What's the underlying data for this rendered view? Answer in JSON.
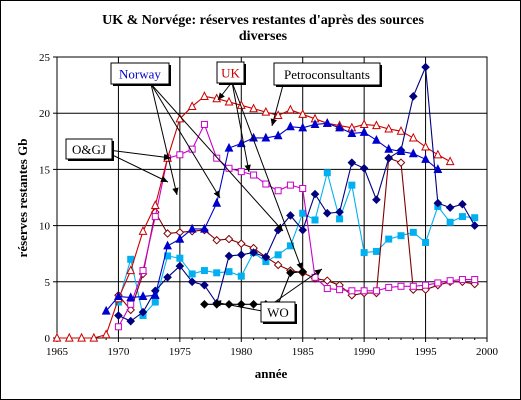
{
  "chart_data": {
    "type": "line",
    "title": [
      "UK & Norvége: réserves restantes d'après des sources",
      "diverses"
    ],
    "xlabel": "année",
    "ylabel": "réserves restantes Gb",
    "xlim": [
      1965,
      2000
    ],
    "ylim": [
      0,
      25
    ],
    "xticks": [
      1965,
      1970,
      1975,
      1980,
      1985,
      1990,
      1995,
      2000
    ],
    "yticks": [
      0,
      5,
      10,
      15,
      20,
      25
    ],
    "grid": "horizontal and vertical major gridlines",
    "legend": "callout labels",
    "colors": {
      "uk": "#cc0000",
      "norway_triangle": "#0000cc",
      "norway_diamond": "#000080",
      "og_j": "#cc00cc",
      "wo": "#800000",
      "petroconsultants_cyan": "#00b0f0",
      "petroconsultants_black": "#000000"
    },
    "series": [
      {
        "key": "uk",
        "marker": "open-triangle",
        "x": [
          1965,
          1966,
          1967,
          1968,
          1969,
          1970,
          1971,
          1972,
          1973,
          1974,
          1975,
          1976,
          1977,
          1978,
          1979,
          1980,
          1981,
          1982,
          1983,
          1984,
          1985,
          1986,
          1987,
          1988,
          1989,
          1990,
          1991,
          1992,
          1993,
          1994,
          1995,
          1996,
          1997
        ],
        "values": [
          0,
          0,
          0,
          0,
          0.3,
          3.5,
          6,
          9.5,
          11.8,
          16,
          19.5,
          20.6,
          21.5,
          21.3,
          21,
          20.7,
          20.4,
          20.1,
          19.8,
          20.3,
          19.9,
          19.5,
          19.1,
          18.9,
          18.7,
          19,
          18.9,
          18.6,
          18.4,
          17.8,
          17,
          16.3,
          15.7
        ]
      },
      {
        "key": "norway_triangle",
        "marker": "filled-triangle",
        "x": [
          1969,
          1970,
          1971,
          1972,
          1973,
          1974,
          1975,
          1976,
          1977,
          1978,
          1979,
          1980,
          1981,
          1982,
          1983,
          1984,
          1985,
          1986,
          1987,
          1988,
          1989,
          1990,
          1991,
          1992,
          1993,
          1994,
          1995,
          1996
        ],
        "values": [
          2.4,
          3.7,
          3.6,
          3.7,
          3.8,
          8.2,
          8.8,
          9.7,
          9.7,
          12,
          16.9,
          17.3,
          17.8,
          17.8,
          18,
          18.8,
          18.7,
          19,
          19.1,
          18.7,
          18.2,
          18.3,
          17.6,
          16.8,
          16.6,
          16.4,
          15.9,
          15
        ]
      },
      {
        "key": "norway_diamond",
        "marker": "filled-diamond",
        "x": [
          1970,
          1971,
          1972,
          1973,
          1974,
          1975,
          1976,
          1977,
          1978,
          1979,
          1980,
          1981,
          1982,
          1983,
          1984,
          1985,
          1986,
          1987,
          1988,
          1989,
          1990,
          1991,
          1992,
          1993,
          1994,
          1995,
          1996,
          1997,
          1998,
          1999
        ],
        "values": [
          2,
          1.5,
          2.3,
          4.2,
          5.4,
          6.4,
          5,
          4.7,
          3.1,
          7.3,
          7.4,
          7.6,
          7.2,
          9.6,
          10.9,
          9.6,
          12.8,
          11.1,
          11.2,
          15.6,
          15.1,
          12.3,
          16,
          16.7,
          21.5,
          24.1,
          12,
          11.6,
          11.9,
          10
        ]
      },
      {
        "key": "og_j",
        "marker": "open-square",
        "x": [
          1970,
          1971,
          1972,
          1973,
          1974,
          1975,
          1976,
          1977,
          1978,
          1979,
          1980,
          1981,
          1982,
          1983,
          1984,
          1985,
          1986,
          1987,
          1988,
          1989,
          1990,
          1991,
          1992,
          1993,
          1994,
          1995,
          1996,
          1997,
          1998,
          1999
        ],
        "values": [
          1,
          3,
          6,
          10.8,
          16,
          16.3,
          16.8,
          19,
          16,
          15.1,
          14.8,
          14.5,
          13.7,
          13.1,
          13.6,
          13.3,
          5.4,
          4.4,
          4.3,
          4.2,
          4.2,
          4.2,
          4.5,
          4.6,
          4.6,
          4.7,
          4.9,
          5.1,
          5.2,
          5.2
        ]
      },
      {
        "key": "wo",
        "marker": "open-diamond",
        "x": [
          1970,
          1971,
          1972,
          1973,
          1974,
          1975,
          1976,
          1977,
          1978,
          1979,
          1980,
          1981,
          1982,
          1983,
          1984,
          1985,
          1986,
          1987,
          1988,
          1989,
          1990,
          1991,
          1992,
          1993,
          1994,
          1995,
          1996,
          1997,
          1998,
          1999
        ],
        "values": [
          3.8,
          2.5,
          5.7,
          11.2,
          9.3,
          9.4,
          9.5,
          9.6,
          8.7,
          8.8,
          8.4,
          8,
          7.2,
          6.5,
          6,
          5.8,
          5.3,
          5.1,
          4.7,
          3.8,
          4,
          4,
          16,
          15.6,
          4.3,
          4.3,
          4.7,
          5,
          5,
          4.8
        ]
      },
      {
        "key": "petroconsultants_cyan",
        "marker": "filled-square",
        "x": [
          1970,
          1971,
          1972,
          1973,
          1974,
          1975,
          1976,
          1977,
          1978,
          1979,
          1980,
          1981,
          1982,
          1983,
          1984,
          1985,
          1986,
          1987,
          1988,
          1989,
          1990,
          1991,
          1992,
          1993,
          1994,
          1995,
          1996,
          1997,
          1998,
          1999
        ],
        "values": [
          3.2,
          7,
          2,
          3.2,
          7.3,
          7.1,
          5.7,
          6,
          5.8,
          5.9,
          5.5,
          7.6,
          6.8,
          7.4,
          8.2,
          11.1,
          10.5,
          14.7,
          10.6,
          13.6,
          7.6,
          7.7,
          8.8,
          9.1,
          9.4,
          8.5,
          11.7,
          10.3,
          10.8,
          10.7
        ]
      },
      {
        "key": "petroconsultants_black",
        "marker": "filled-diamond",
        "x": [
          1977,
          1978,
          1979,
          1980,
          1981,
          1982,
          1983,
          1984,
          1985,
          1986,
          1987,
          1988,
          1989,
          1990,
          1991,
          1992,
          1993,
          1994,
          1995,
          1996,
          1997,
          1998,
          1999
        ],
        "values": [
          3,
          3,
          3,
          3,
          3,
          3,
          3,
          5.8,
          5.9,
          null,
          null,
          null,
          null,
          null,
          null,
          null,
          null,
          null,
          null,
          null,
          null,
          null,
          null
        ]
      }
    ],
    "labels": {
      "norway": "Norway",
      "uk": "UK",
      "petroconsultants": "Petroconsultants",
      "og_j": "O&GJ",
      "wo": "WO"
    }
  }
}
